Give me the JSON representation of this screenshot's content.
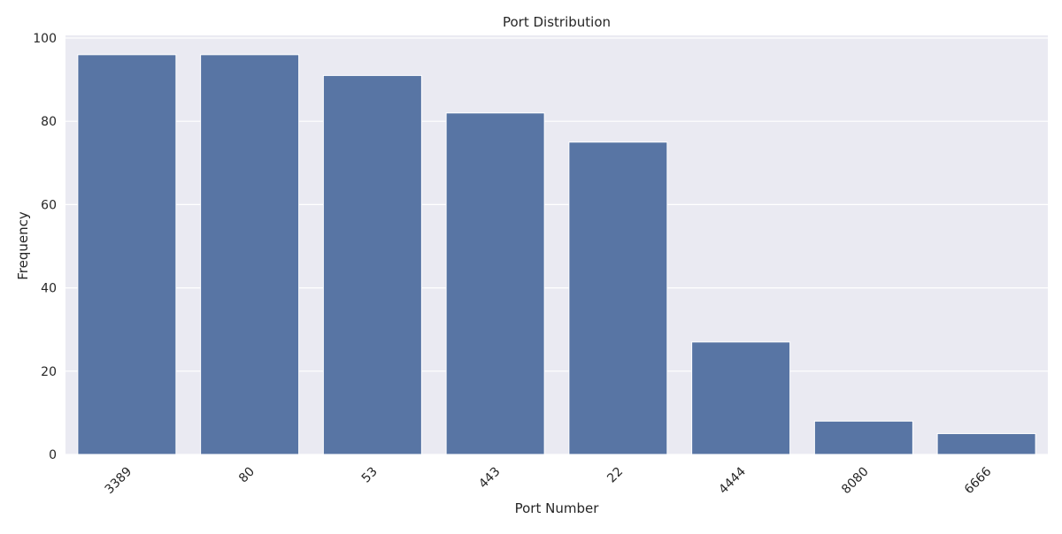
{
  "chart_data": {
    "type": "bar",
    "title": "Port Distribution",
    "xlabel": "Port Number",
    "ylabel": "Frequency",
    "categories": [
      "3389",
      "80",
      "53",
      "443",
      "22",
      "4444",
      "8080",
      "6666"
    ],
    "values": [
      96,
      96,
      91,
      82,
      75,
      27,
      8,
      5
    ],
    "ylim": [
      0,
      100
    ],
    "yticks": [
      0,
      20,
      40,
      60,
      80,
      100
    ],
    "grid": true,
    "colors": {
      "bar": "#5875a4",
      "plot_background": "#eaeaf2",
      "grid": "#ffffff"
    }
  }
}
